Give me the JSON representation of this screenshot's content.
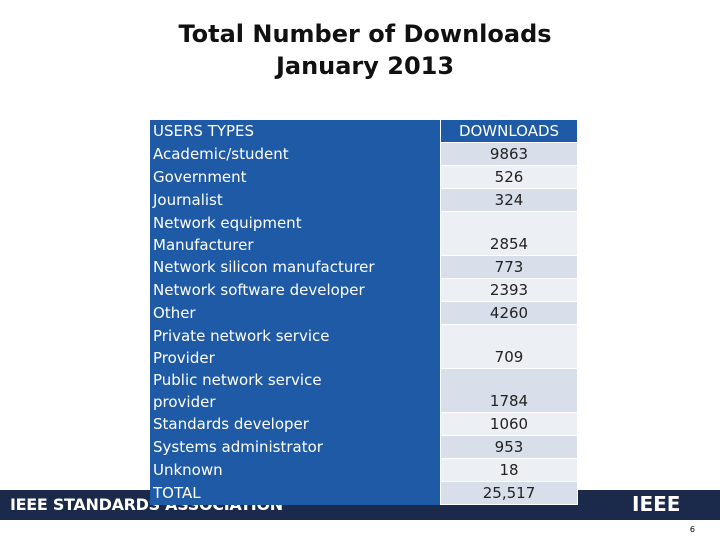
{
  "title": [
    "Total Number of Downloads",
    "January 2013"
  ],
  "table": {
    "header": [
      "USERS TYPES",
      "DOWNLOADS"
    ],
    "rows": [
      {
        "label": [
          "Academic/student"
        ],
        "value": "9863"
      },
      {
        "label": [
          "Government"
        ],
        "value": "526"
      },
      {
        "label": [
          "Journalist"
        ],
        "value": "324"
      },
      {
        "label": [
          "Network equipment",
          "Manufacturer"
        ],
        "value": "2854"
      },
      {
        "label": [
          "Network silicon manufacturer"
        ],
        "value": "773"
      },
      {
        "label": [
          "Network software developer"
        ],
        "value": "2393"
      },
      {
        "label": [
          "Other"
        ],
        "value": "4260"
      },
      {
        "label": [
          "Private network service",
          "Provider"
        ],
        "value": "709"
      },
      {
        "label": [
          "Public network service",
          "provider"
        ],
        "value": "1784"
      },
      {
        "label": [
          "Standards developer"
        ],
        "value": "1060"
      },
      {
        "label": [
          "Systems administrator"
        ],
        "value": "953"
      },
      {
        "label": [
          "Unknown"
        ],
        "value": "18"
      },
      {
        "label": [
          "TOTAL"
        ],
        "value": "25,517"
      }
    ]
  },
  "footer": {
    "brand": "IEEE STANDARDS ASSOCIATION",
    "logo": "IEEE",
    "page": "6"
  }
}
